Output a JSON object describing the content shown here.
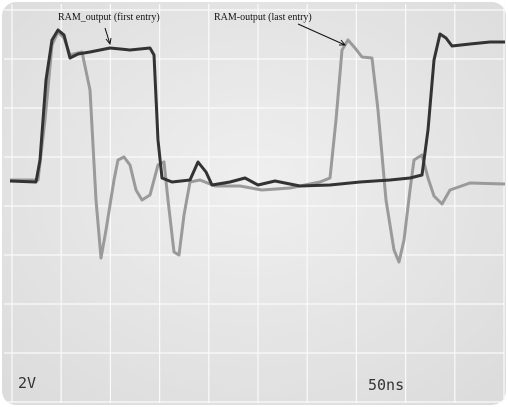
{
  "annotations": [
    {
      "label": "RAM_output (first entry)"
    },
    {
      "label": "RAM-output (last entry)"
    }
  ],
  "scale": {
    "volts": "2V",
    "time": "50ns"
  }
}
